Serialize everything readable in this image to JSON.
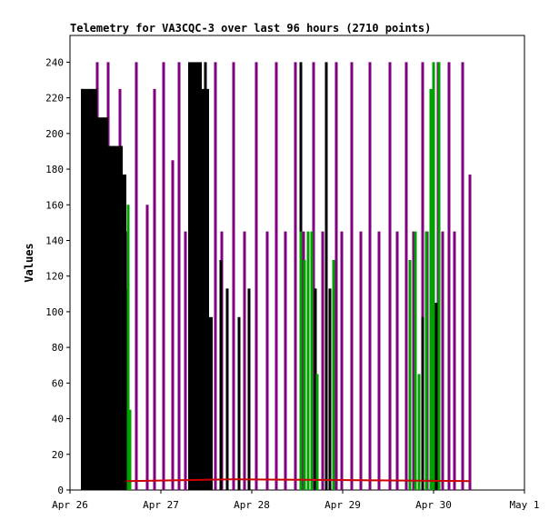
{
  "chart_data": {
    "type": "line",
    "title": "Telemetry for VA3CQC-3 over last 96 hours (2710 points)",
    "xlabel": "",
    "ylabel": "Values",
    "x_ticks": [
      "Apr 26",
      "Apr 27",
      "Apr 28",
      "Apr 29",
      "Apr 30",
      "May 1"
    ],
    "x_range_days": [
      0,
      5
    ],
    "y_ticks": [
      0,
      20,
      40,
      60,
      80,
      100,
      120,
      140,
      160,
      180,
      200,
      220,
      240
    ],
    "ylim": [
      0,
      255
    ],
    "grid": false,
    "legend": "none",
    "colors": {
      "purple": "#800080",
      "black": "#000000",
      "green": "#00a000",
      "red": "#cc0000"
    },
    "series": [
      {
        "color": "#800080",
        "spikes": [
          {
            "x": 0.3,
            "y": 240
          },
          {
            "x": 0.42,
            "y": 240
          },
          {
            "x": 0.55,
            "y": 225
          },
          {
            "x": 0.63,
            "y": 145
          },
          {
            "x": 0.73,
            "y": 240
          },
          {
            "x": 0.85,
            "y": 160
          },
          {
            "x": 0.93,
            "y": 225
          },
          {
            "x": 1.03,
            "y": 240
          },
          {
            "x": 1.13,
            "y": 185
          },
          {
            "x": 1.2,
            "y": 240
          },
          {
            "x": 1.27,
            "y": 145
          },
          {
            "x": 1.6,
            "y": 240
          },
          {
            "x": 1.67,
            "y": 145
          },
          {
            "x": 1.8,
            "y": 240
          },
          {
            "x": 1.92,
            "y": 145
          },
          {
            "x": 2.05,
            "y": 240
          },
          {
            "x": 2.17,
            "y": 145
          },
          {
            "x": 2.27,
            "y": 240
          },
          {
            "x": 2.37,
            "y": 145
          },
          {
            "x": 2.48,
            "y": 240
          },
          {
            "x": 2.57,
            "y": 145
          },
          {
            "x": 2.68,
            "y": 240
          },
          {
            "x": 2.78,
            "y": 145
          },
          {
            "x": 2.93,
            "y": 240
          },
          {
            "x": 2.99,
            "y": 145
          },
          {
            "x": 3.1,
            "y": 240
          },
          {
            "x": 3.2,
            "y": 145
          },
          {
            "x": 3.3,
            "y": 240
          },
          {
            "x": 3.4,
            "y": 145
          },
          {
            "x": 3.52,
            "y": 240
          },
          {
            "x": 3.6,
            "y": 145
          },
          {
            "x": 3.7,
            "y": 240
          },
          {
            "x": 3.78,
            "y": 145
          },
          {
            "x": 3.88,
            "y": 240
          },
          {
            "x": 3.93,
            "y": 145
          },
          {
            "x": 4.05,
            "y": 240
          },
          {
            "x": 4.1,
            "y": 145
          },
          {
            "x": 4.17,
            "y": 240
          },
          {
            "x": 4.23,
            "y": 145
          },
          {
            "x": 4.32,
            "y": 240
          },
          {
            "x": 4.4,
            "y": 177
          }
        ]
      },
      {
        "color": "#000000",
        "blocks": [
          {
            "x0": 0.12,
            "x1": 0.3,
            "y": 225
          },
          {
            "x0": 0.3,
            "x1": 0.42,
            "y": 209
          },
          {
            "x0": 0.42,
            "x1": 0.58,
            "y": 193
          },
          {
            "x0": 0.58,
            "x1": 0.62,
            "y": 177
          },
          {
            "x0": 1.3,
            "x1": 1.45,
            "y": 240
          },
          {
            "x0": 1.45,
            "x1": 1.53,
            "y": 225
          },
          {
            "x0": 1.53,
            "x1": 1.57,
            "y": 97
          }
        ],
        "spikes": [
          {
            "x": 0.63,
            "y": 113
          },
          {
            "x": 1.49,
            "y": 240
          },
          {
            "x": 1.66,
            "y": 129
          },
          {
            "x": 1.73,
            "y": 113
          },
          {
            "x": 1.86,
            "y": 97
          },
          {
            "x": 1.97,
            "y": 113
          },
          {
            "x": 2.54,
            "y": 240
          },
          {
            "x": 2.7,
            "y": 113
          },
          {
            "x": 2.82,
            "y": 240
          },
          {
            "x": 2.86,
            "y": 113
          },
          {
            "x": 2.9,
            "y": 80
          },
          {
            "x": 3.88,
            "y": 97
          },
          {
            "x": 4.03,
            "y": 105
          }
        ]
      },
      {
        "color": "#00a000",
        "spikes": [
          {
            "x": 0.64,
            "y": 160
          },
          {
            "x": 0.66,
            "y": 45
          },
          {
            "x": 2.54,
            "y": 145
          },
          {
            "x": 2.58,
            "y": 129
          },
          {
            "x": 2.62,
            "y": 145
          },
          {
            "x": 2.66,
            "y": 145
          },
          {
            "x": 2.72,
            "y": 65
          },
          {
            "x": 2.9,
            "y": 129
          },
          {
            "x": 3.74,
            "y": 129
          },
          {
            "x": 3.8,
            "y": 145
          },
          {
            "x": 3.84,
            "y": 65
          },
          {
            "x": 3.92,
            "y": 145
          },
          {
            "x": 3.97,
            "y": 225
          },
          {
            "x": 4.0,
            "y": 240
          },
          {
            "x": 4.06,
            "y": 240
          }
        ]
      },
      {
        "color": "#cc0000",
        "baseline": [
          {
            "x": 0.62,
            "y": 5
          },
          {
            "x": 1.8,
            "y": 6
          },
          {
            "x": 4.4,
            "y": 5
          }
        ]
      }
    ]
  }
}
